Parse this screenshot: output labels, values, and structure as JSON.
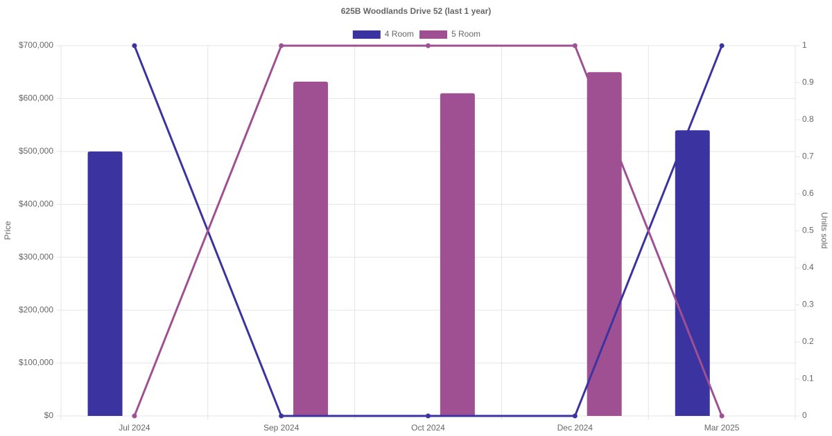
{
  "chart_data": {
    "type": "bar-line",
    "title": "625B Woodlands Drive 52 (last 1 year)",
    "ylabel": "Price",
    "y2label": "Units sold",
    "categories": [
      "Jul 2024",
      "Sep 2024",
      "Oct 2024",
      "Dec 2024",
      "Mar 2025"
    ],
    "series": [
      {
        "name": "4 Room",
        "color": "#3a33a0",
        "values": [
          500000,
          null,
          null,
          null,
          540000
        ],
        "units_sold": [
          1,
          0,
          0,
          0,
          1
        ]
      },
      {
        "name": "5 Room",
        "color": "#9e5093",
        "values": [
          null,
          632000,
          610000,
          650000,
          null
        ],
        "units_sold": [
          0,
          1,
          1,
          1,
          0
        ]
      }
    ],
    "ylim": [
      0,
      700000
    ],
    "yticks": [
      {
        "value": 0,
        "label": "$0"
      },
      {
        "value": 100000,
        "label": "$100,000"
      },
      {
        "value": 200000,
        "label": "$200,000"
      },
      {
        "value": 300000,
        "label": "$300,000"
      },
      {
        "value": 400000,
        "label": "$400,000"
      },
      {
        "value": 500000,
        "label": "$500,000"
      },
      {
        "value": 600000,
        "label": "$600,000"
      },
      {
        "value": 700000,
        "label": "$700,000"
      }
    ],
    "y2lim": [
      0,
      1
    ],
    "y2ticks": [
      0,
      0.1,
      0.2,
      0.3,
      0.4,
      0.5,
      0.6,
      0.7,
      0.8,
      0.9,
      1
    ],
    "grid": true,
    "legend": "top"
  }
}
